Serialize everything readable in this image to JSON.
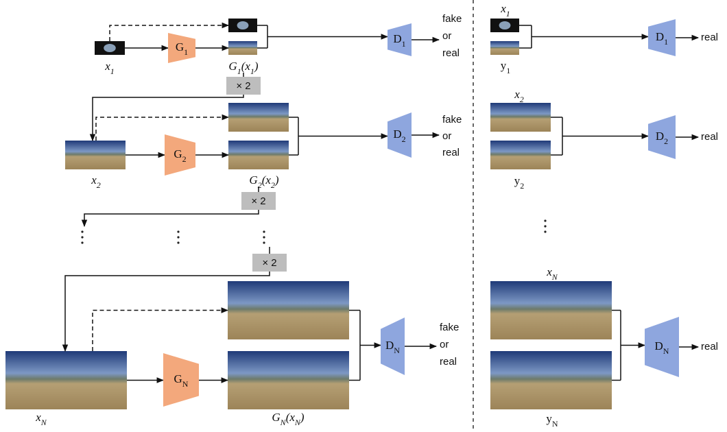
{
  "left": {
    "levels": [
      {
        "input": [
          "x",
          "1"
        ],
        "generator": [
          "G",
          "1"
        ],
        "output": [
          "G",
          "1",
          "(x",
          "1",
          ")"
        ],
        "discriminator": [
          "D",
          "1"
        ],
        "verdict": [
          "fake",
          "or",
          "real"
        ]
      },
      {
        "input": [
          "x",
          "2"
        ],
        "generator": [
          "G",
          "2"
        ],
        "output": [
          "G",
          "2",
          "(x",
          "2",
          ")"
        ],
        "discriminator": [
          "D",
          "2"
        ],
        "verdict": [
          "fake",
          "or",
          "real"
        ]
      },
      {
        "input": [
          "x",
          "N"
        ],
        "generator": [
          "G",
          "N"
        ],
        "output": [
          "G",
          "N",
          "(x",
          "N",
          ")"
        ],
        "discriminator": [
          "D",
          "N"
        ],
        "verdict": [
          "fake",
          "or",
          "real"
        ]
      }
    ],
    "upsample": [
      "× 2",
      "× 2",
      "× 2"
    ]
  },
  "right": {
    "levels": [
      {
        "top": [
          "x",
          "1"
        ],
        "bottom": [
          "y",
          "1"
        ],
        "discriminator": [
          "D",
          "1"
        ],
        "verdict": "real"
      },
      {
        "top": [
          "x",
          "2"
        ],
        "bottom": [
          "y",
          "2"
        ],
        "discriminator": [
          "D",
          "2"
        ],
        "verdict": "real"
      },
      {
        "top": [
          "x",
          "N"
        ],
        "bottom": [
          "y",
          "N"
        ],
        "discriminator": [
          "D",
          "N"
        ],
        "verdict": "real"
      }
    ]
  }
}
